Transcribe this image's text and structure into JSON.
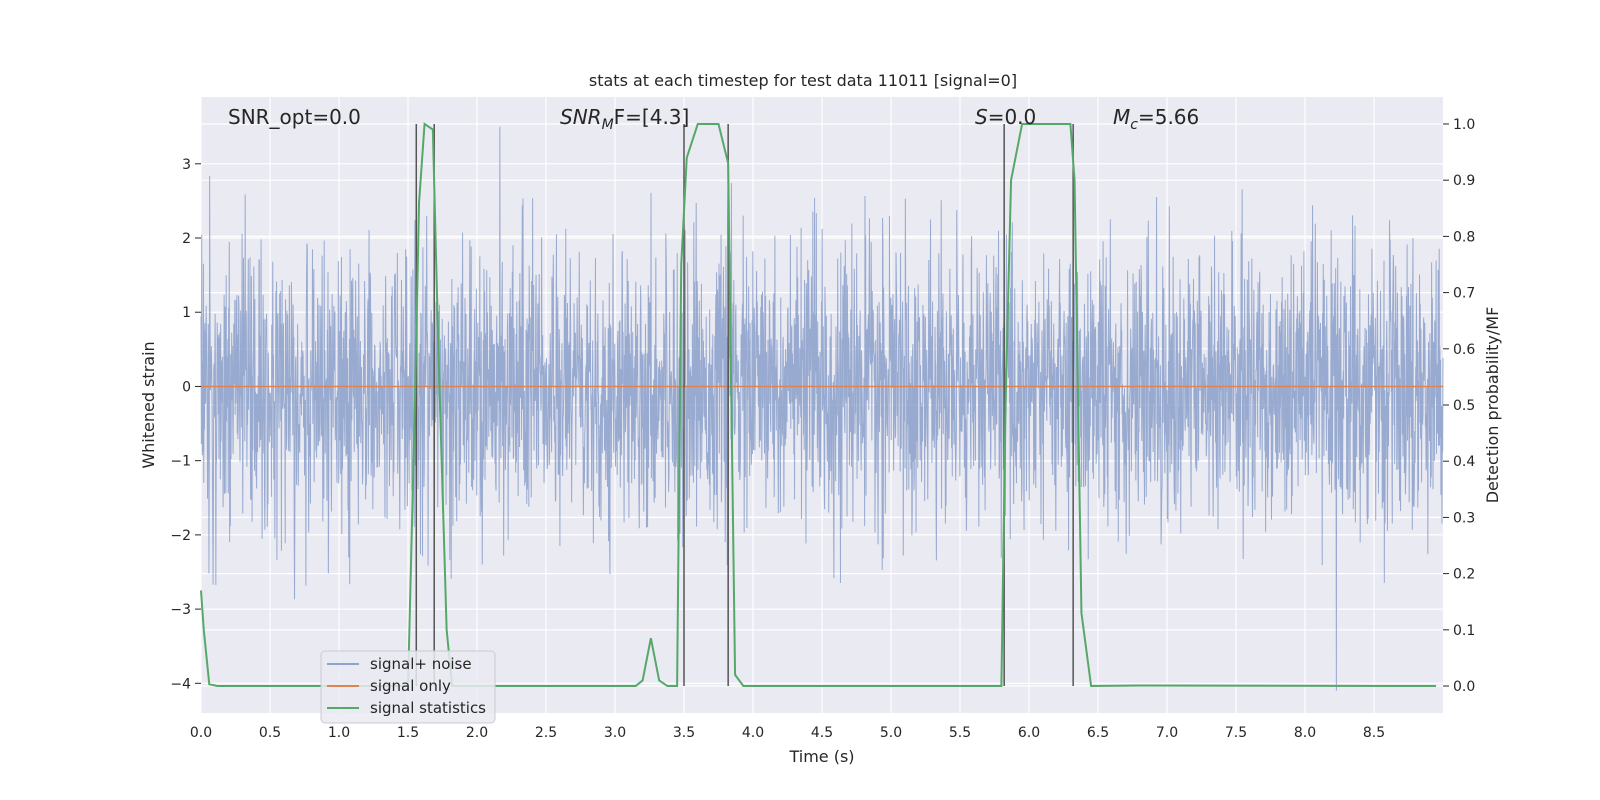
{
  "chart_data": {
    "type": "line",
    "title": "stats at each timestep for test data 11011 [signal=0]",
    "xlabel": "Time (s)",
    "ylabel": "Whitened strain",
    "ylabel_right": "Detection probability/MF",
    "xlim": [
      0,
      9
    ],
    "ylim_left": [
      -4.4,
      3.9
    ],
    "ylim_right": [
      -0.048,
      1.048
    ],
    "x_ticks": [
      "0.0",
      "0.5",
      "1.0",
      "1.5",
      "2.0",
      "2.5",
      "3.0",
      "3.5",
      "4.0",
      "4.5",
      "5.0",
      "5.5",
      "6.0",
      "6.5",
      "7.0",
      "7.5",
      "8.0",
      "8.5"
    ],
    "y_ticks_left": [
      "3",
      "2",
      "1",
      "0",
      "−1",
      "−2",
      "−3",
      "−4"
    ],
    "y_ticks_right": [
      "1.0",
      "0.9",
      "0.8",
      "0.7",
      "0.6",
      "0.5",
      "0.4",
      "0.3",
      "0.2",
      "0.1",
      "0.0"
    ],
    "grid": true,
    "legend_position": "lower-left",
    "annotations": {
      "snr_opt": "SNR_opt=0.0",
      "snr_mf_main": "SNR",
      "snr_mf_sub": "M",
      "snr_mf_rest": "F=[4.3]",
      "s_main": "S",
      "s_rest": "=0.0",
      "mc_main": "M",
      "mc_sub": "c",
      "mc_rest": "=5.66"
    },
    "series": [
      {
        "name": "signal+ noise",
        "color": "#8fa3cc",
        "envelope_typical": 2.0,
        "envelope_peak": 3.5
      },
      {
        "name": "signal only",
        "color": "#dd8452",
        "values_constant": 0.0
      },
      {
        "name": "signal statistics",
        "color": "#55a868",
        "x": [
          0.0,
          0.02,
          0.06,
          0.12,
          1.5,
          1.55,
          1.58,
          1.62,
          1.68,
          1.72,
          1.78,
          1.82,
          3.15,
          3.2,
          3.26,
          3.32,
          3.38,
          3.45,
          3.48,
          3.52,
          3.6,
          3.65,
          3.75,
          3.82,
          3.87,
          3.93,
          5.8,
          5.83,
          5.87,
          5.95,
          6.05,
          6.3,
          6.33,
          6.38,
          6.45,
          6.8,
          8.95
        ],
        "values": [
          0.17,
          0.1,
          0.003,
          0.0,
          0.0,
          0.5,
          0.86,
          1.0,
          0.99,
          0.6,
          0.1,
          0.0,
          0.0,
          0.01,
          0.085,
          0.01,
          0.0,
          0.0,
          0.75,
          0.94,
          1.0,
          1.0,
          1.0,
          0.93,
          0.02,
          0.0,
          0.0,
          0.5,
          0.9,
          1.0,
          1.0,
          1.0,
          0.9,
          0.13,
          0.0,
          0.001,
          0.0
        ]
      }
    ],
    "vertical_markers": [
      1.56,
      1.69,
      3.5,
      3.82,
      5.82,
      6.32
    ]
  }
}
